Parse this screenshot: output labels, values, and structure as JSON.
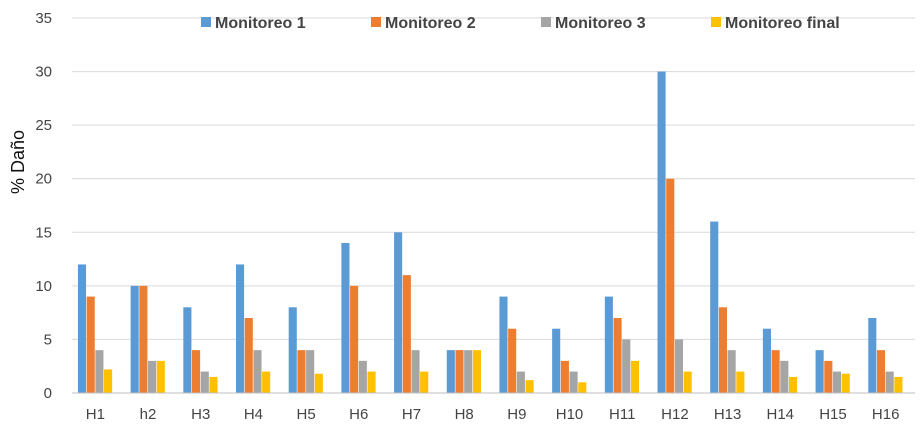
{
  "chart_data": {
    "type": "bar",
    "title": "",
    "xlabel": "",
    "ylabel": "% Daño",
    "ylim": [
      0,
      35
    ],
    "yticks": [
      0,
      5,
      10,
      15,
      20,
      25,
      30,
      35
    ],
    "grid": true,
    "legend_position": "top",
    "categories": [
      "H1",
      "h2",
      "H3",
      "H4",
      "H5",
      "H6",
      "H7",
      "H8",
      "H9",
      "H10",
      "H11",
      "H12",
      "H13",
      "H14",
      "H15",
      "H16"
    ],
    "series": [
      {
        "name": "Monitoreo 1",
        "color": "#5B9BD5",
        "values": [
          12,
          10,
          8,
          12,
          8,
          14,
          15,
          4,
          9,
          6,
          9,
          30,
          16,
          6,
          4,
          7
        ]
      },
      {
        "name": "Monitoreo 2",
        "color": "#ED7D31",
        "values": [
          9,
          10,
          4,
          7,
          4,
          10,
          11,
          4,
          6,
          3,
          7,
          20,
          8,
          4,
          3,
          4
        ]
      },
      {
        "name": "Monitoreo 3",
        "color": "#A5A5A5",
        "values": [
          4,
          3,
          2,
          4,
          4,
          3,
          4,
          4,
          2,
          2,
          5,
          5,
          4,
          3,
          2,
          2
        ]
      },
      {
        "name": "Monitoreo final",
        "color": "#FFC000",
        "values": [
          2.2,
          3,
          1.5,
          2,
          1.8,
          2,
          2,
          4,
          1.2,
          1,
          3,
          2,
          2,
          1.5,
          1.8,
          1.5
        ]
      }
    ]
  }
}
